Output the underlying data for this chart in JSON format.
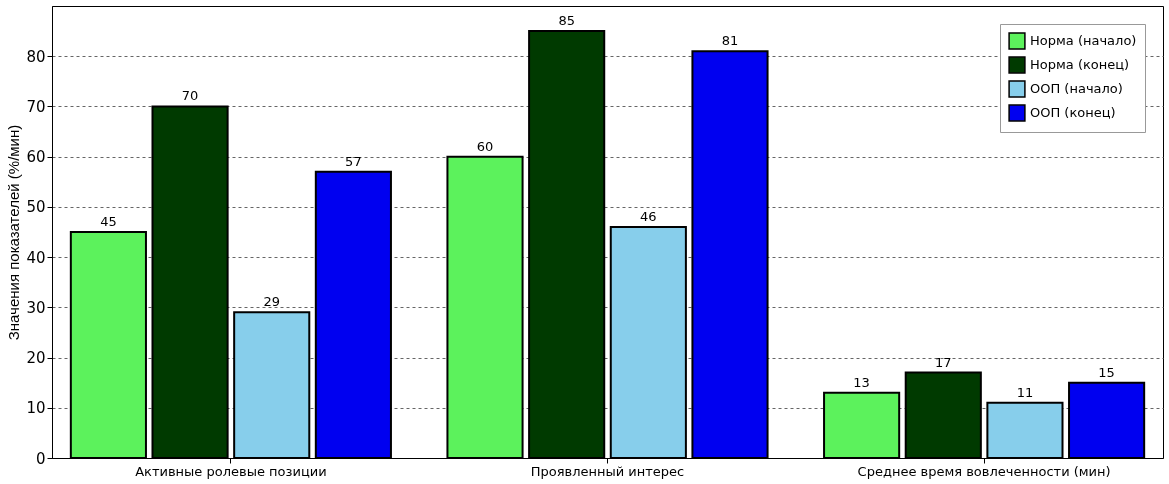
{
  "chart_data": {
    "type": "bar",
    "ylabel": "Значения показателей (%/мин)",
    "categories": [
      "Активные ролевые позиции",
      "Проявленный интерес",
      "Среднее время вовлеченности (мин)"
    ],
    "series": [
      {
        "name": "Норма (начало)",
        "color": "#5cf25c",
        "values": [
          45,
          60,
          13
        ]
      },
      {
        "name": "Норма (конец)",
        "color": "#003a00",
        "values": [
          70,
          85,
          17
        ]
      },
      {
        "name": "ООП (начало)",
        "color": "#87ceeb",
        "values": [
          29,
          46,
          11
        ]
      },
      {
        "name": "ООП (конец)",
        "color": "#0000f0",
        "values": [
          57,
          81,
          15
        ]
      }
    ],
    "ylim": [
      0,
      90
    ],
    "yticks": [
      0,
      10,
      20,
      30,
      40,
      50,
      60,
      70,
      80
    ],
    "grid": "y",
    "legend": "top right",
    "data_labels": true
  }
}
